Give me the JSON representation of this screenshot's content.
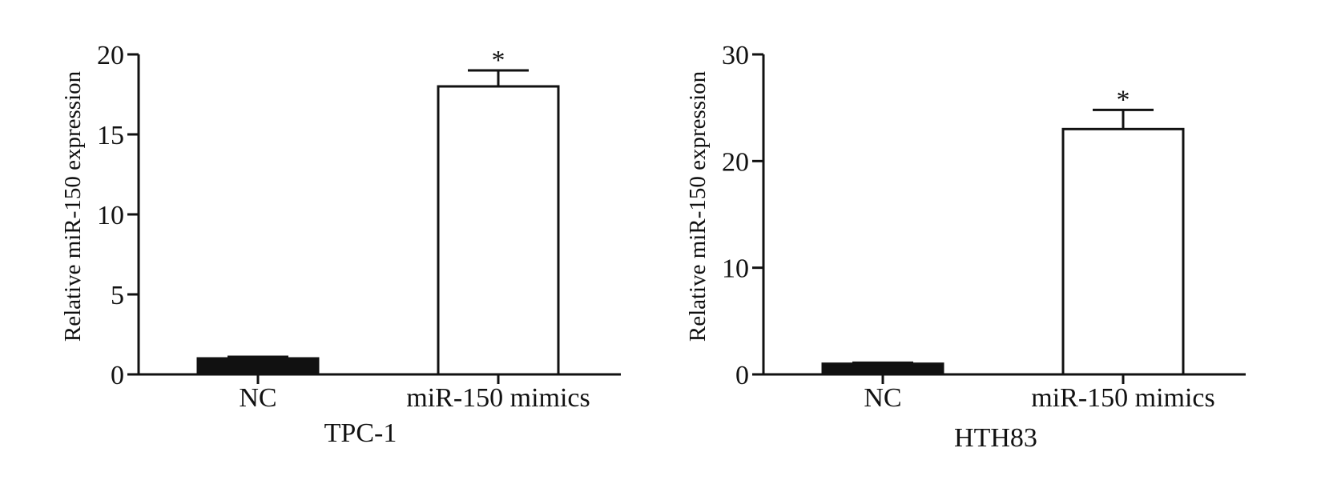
{
  "chart_data": [
    {
      "type": "bar",
      "xlabel": "TPC-1",
      "ylabel": "Relative miR-150 expression",
      "categories": [
        "NC",
        "miR-150 mimics"
      ],
      "values": [
        1.0,
        18.0
      ],
      "errors": [
        0.1,
        1.0
      ],
      "bar_fills": [
        "#111111",
        "#ffffff"
      ],
      "annotations": [
        "",
        "*"
      ],
      "ylim": [
        0,
        20
      ],
      "yticks": [
        0,
        5,
        10,
        15,
        20
      ],
      "grid": false
    },
    {
      "type": "bar",
      "xlabel": "HTH83",
      "ylabel": "Relative miR-150 expression",
      "categories": [
        "NC",
        "miR-150 mimics"
      ],
      "values": [
        1.0,
        23.0
      ],
      "errors": [
        0.1,
        1.8
      ],
      "bar_fills": [
        "#111111",
        "#ffffff"
      ],
      "annotations": [
        "",
        "*"
      ],
      "ylim": [
        0,
        30
      ],
      "yticks": [
        0,
        10,
        20,
        30
      ],
      "grid": false
    }
  ]
}
